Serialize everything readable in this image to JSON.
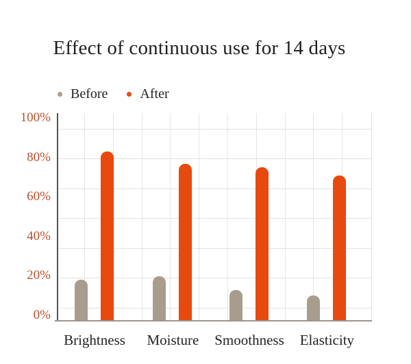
{
  "page": {
    "background": "#ffffff"
  },
  "chart_data": {
    "type": "bar",
    "title": "Effect of continuous use for 14 days",
    "categories": [
      "Brightness",
      "Moisture",
      "Smoothness",
      "Elasticity"
    ],
    "series": [
      {
        "name": "Before",
        "color": "#a89d8d",
        "values": [
          18,
          20,
          13,
          10
        ]
      },
      {
        "name": "After",
        "color": "#e8490f",
        "values": [
          83,
          77,
          75,
          71
        ]
      }
    ],
    "y_ticks": [
      {
        "value": 0,
        "label": "0%"
      },
      {
        "value": 20,
        "label": "20%"
      },
      {
        "value": 40,
        "label": "40%"
      },
      {
        "value": 60,
        "label": "60%"
      },
      {
        "value": 80,
        "label": "80%"
      },
      {
        "value": 100,
        "label": "100%"
      }
    ],
    "ylim": [
      0,
      100
    ],
    "grid": true,
    "legend_position": "top-left",
    "colors": {
      "title": "#1f1f1f",
      "axis_tick_label": "#be4f2c",
      "category_label": "#242424",
      "gridline": "#e6e4e1",
      "y_axis_line": "#56524d",
      "x_axis_line": "#9b958e"
    }
  }
}
